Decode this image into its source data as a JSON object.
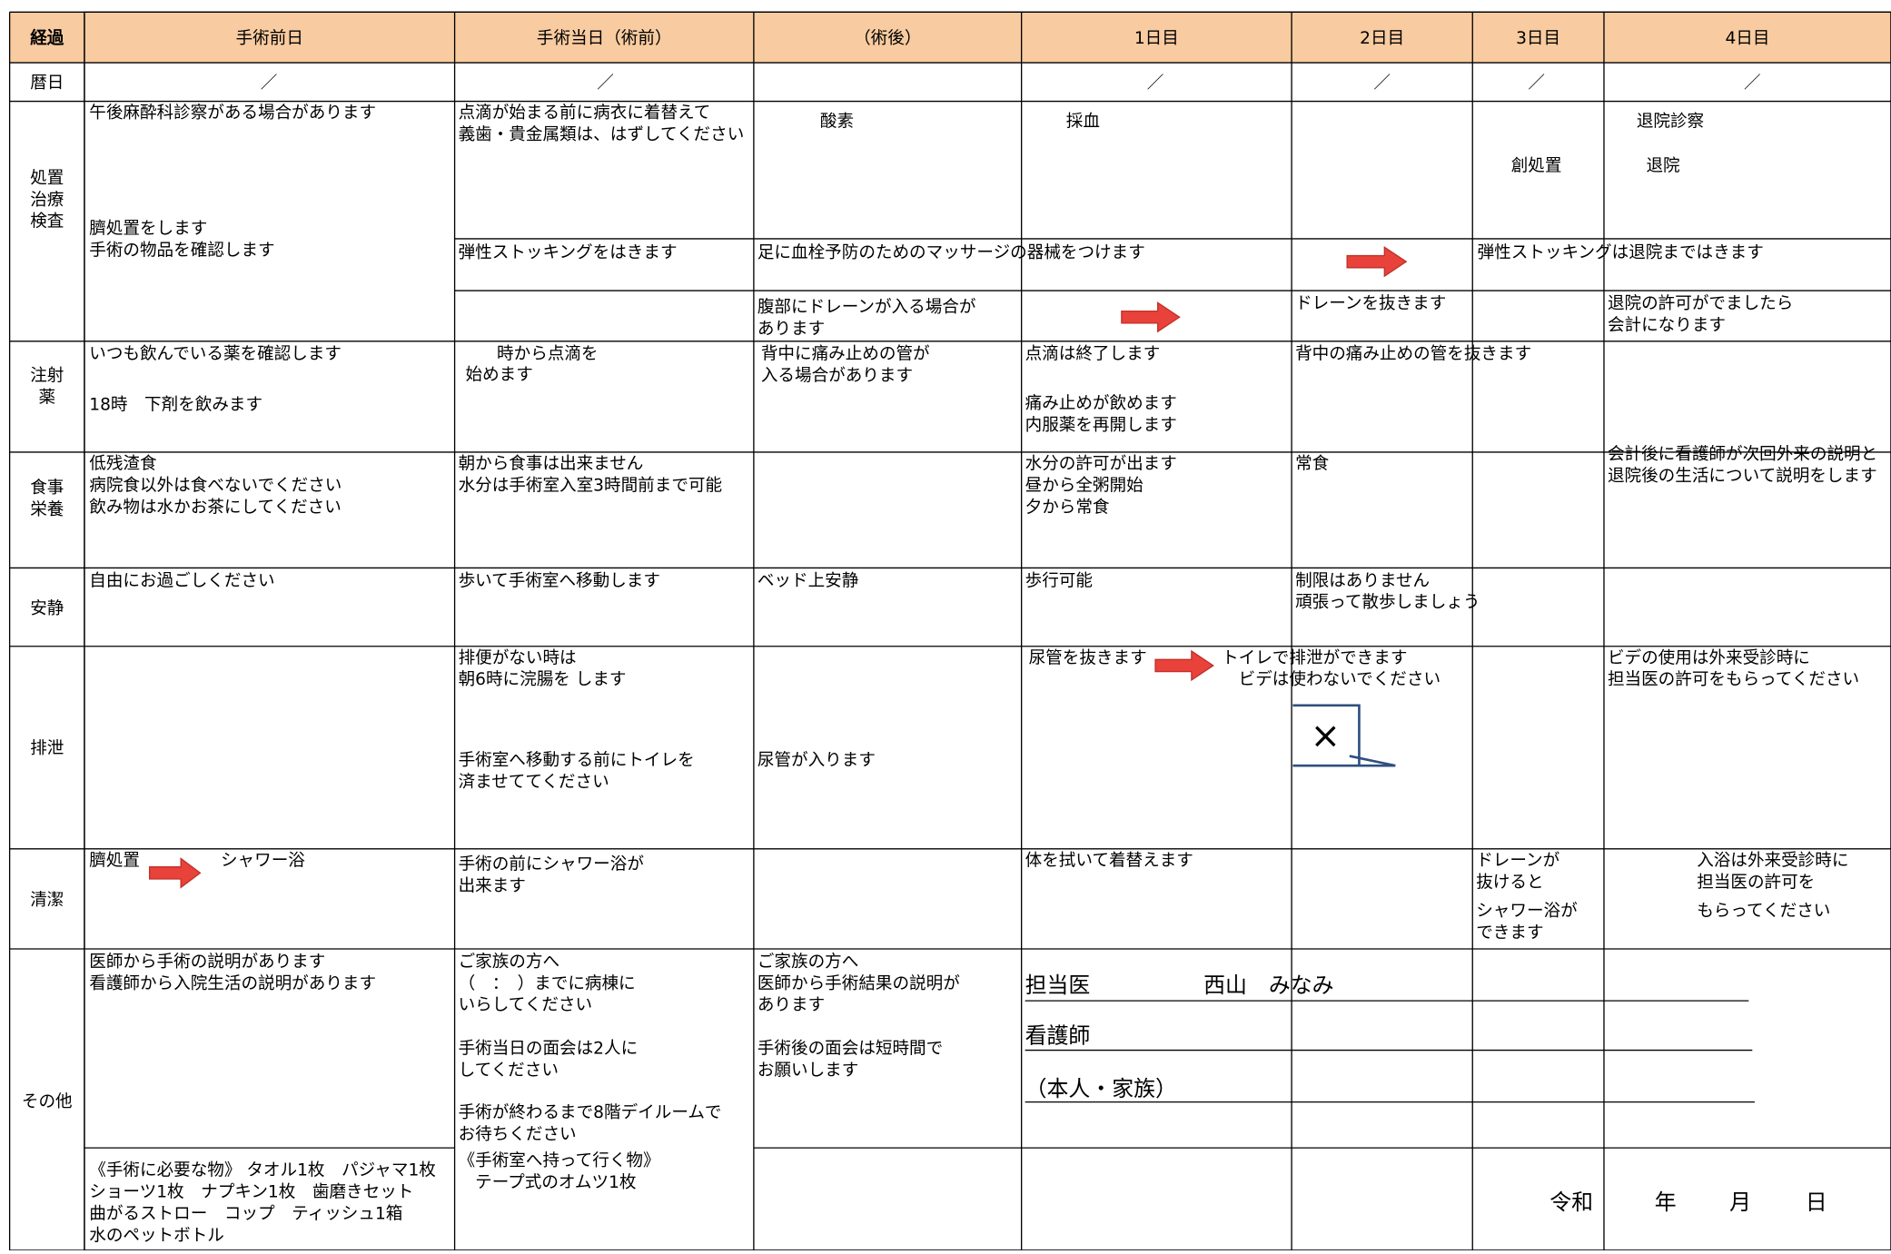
{
  "header": {
    "columns": [
      "経過",
      "手術前日",
      "手術当日（術前）",
      "（術後）",
      "1日目",
      "2日目",
      "3日目",
      "4日目"
    ]
  },
  "calendar": [
    "／",
    "／",
    "／",
    "／",
    "／",
    "／"
  ],
  "row_labels": [
    [
      "暦日"
    ],
    [
      "処置",
      "治療",
      "検査"
    ],
    [
      "注射",
      "薬"
    ],
    [
      "食事",
      "栄養"
    ],
    [
      "安静"
    ],
    [
      "排泄"
    ],
    [
      "清潔"
    ],
    [
      "その他"
    ]
  ],
  "cells": [
    [
      "午後麻酔科診察がある場合があります"
    ],
    [
      "臍処置をします",
      "手術の物品を確認します"
    ],
    [
      "点滴が始まる前に病衣に着替えて",
      "義歯・貴金属類は、はずしてください"
    ],
    [
      "酸素"
    ],
    [
      "採血"
    ],
    [
      "創処置"
    ],
    [
      "退院診察"
    ],
    [
      "退院"
    ],
    [
      "弾性ストッキングをはきます"
    ],
    [
      "足に血栓予防のためのマッサージの器械をつけます"
    ],
    [
      "弾性ストッキングは退院まではきます"
    ],
    [
      "腹部にドレーンが入る場合が",
      "あります"
    ],
    [
      "ドレーンを抜きます"
    ],
    [
      "退院の許可がでましたら",
      "会計になります"
    ],
    [
      "いつも飲んでいる薬を確認します"
    ],
    [
      "18時　下剤を飲みます"
    ],
    [
      "時から点滴を"
    ],
    [
      "始めます"
    ],
    [
      "背中に痛み止めの管が",
      "入る場合があります"
    ],
    [
      "点滴は終了します"
    ],
    [
      "痛み止めが飲めます",
      "内服薬を再開します"
    ],
    [
      "背中の痛み止めの管を抜きます"
    ],
    [
      "会計後に看護師が次回外来の説明と",
      "退院後の生活について説明をします"
    ],
    [
      "低残渣食",
      "病院食以外は食べないでください",
      "飲み物は水かお茶にしてください"
    ],
    [
      "朝から食事は出来ません",
      "水分は手術室入室3時間前まで可能"
    ],
    [
      "水分の許可が出ます",
      "昼から全粥開始",
      "夕から常食"
    ],
    [
      "常食"
    ],
    [
      "自由にお過ごしください"
    ],
    [
      "歩いて手術室へ移動します"
    ],
    [
      "ベッド上安静"
    ],
    [
      "歩行可能"
    ],
    [
      "制限はありません",
      "頑張って散歩しましょう"
    ],
    [
      "排便がない時は",
      "朝6時に浣腸を します"
    ],
    [
      "手術室へ移動する前にトイレを",
      "済ませててください"
    ],
    [
      "尿管が入ります"
    ],
    [
      "尿管を抜きます"
    ],
    [
      "トイレで排泄ができます",
      "　ビデは使わないでください"
    ],
    [
      "ビデの使用は外来受診時に",
      "担当医の許可をもらってください"
    ],
    [
      "臍処置"
    ],
    [
      "シャワー浴"
    ],
    [
      "手術の前にシャワー浴が",
      "出来ます"
    ],
    [
      "体を拭いて着替えます"
    ],
    [
      "ドレーンが",
      "抜けると"
    ],
    [
      "シャワー浴が",
      "できます"
    ],
    [
      "入浴は外来受診時に",
      "担当医の許可を"
    ],
    [
      "もらってください"
    ],
    [
      "医師から手術の説明があります",
      "看護師から入院生活の説明があります"
    ],
    [
      "ご家族の方へ",
      "（　：　）までに病棟に",
      "いらしてください"
    ],
    [
      "手術当日の面会は2人に",
      "してください"
    ],
    [
      "手術が終わるまで8階デイルームで",
      "お待ちください"
    ],
    [
      "ご家族の方へ",
      "医師から手術結果の説明が",
      "あります"
    ],
    [
      "手術後の面会は短時間で",
      "お願いします"
    ],
    [
      "担当医"
    ],
    [
      "西山　みなみ"
    ],
    [
      "看護師"
    ],
    [
      "（本人・家族）"
    ],
    [
      "《手術に必要な物》 タオル1枚　パジャマ1枚",
      "ショーツ1枚　ナプキン1枚　歯磨きセット",
      "曲がるストロー　コップ　ティッシュ1箱",
      "水のペットボトル"
    ],
    [
      "《手術室へ持って行く物》",
      "　テープ式のオムツ1枚"
    ],
    [
      "令和"
    ],
    [
      "年"
    ],
    [
      "月"
    ],
    [
      "日"
    ]
  ],
  "bubble": "×"
}
